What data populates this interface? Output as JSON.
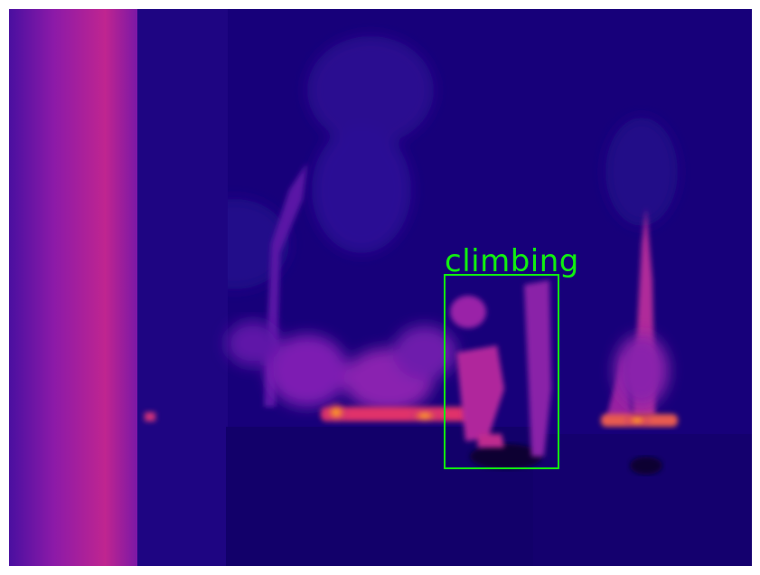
{
  "image": {
    "palette": {
      "background": "#14006e",
      "cold": "#0a0030",
      "warm": "#8a1fb0",
      "hot": "#e0306a",
      "hottest": "#ffc020",
      "detection": "#11ee11"
    }
  },
  "detection": {
    "label": "climbing"
  }
}
